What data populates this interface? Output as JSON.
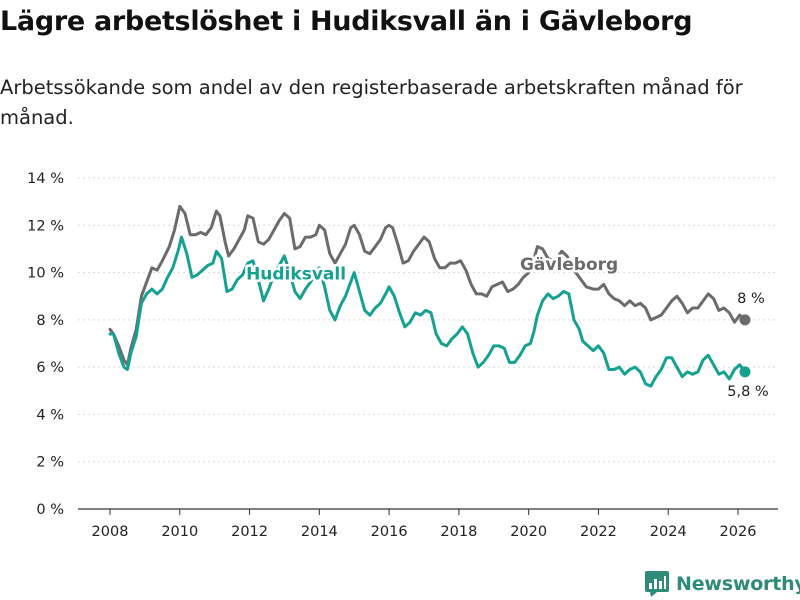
{
  "header": {
    "title": "Lägre arbetslöshet i Hudiksvall än i Gävleborg",
    "subtitle": "Arbetssökande som andel av den registerbaserade arbetskraften månad för månad."
  },
  "branding": {
    "name": "Newsworthy",
    "color": "#2e8b7a"
  },
  "chart_data": {
    "type": "line",
    "title": "Lägre arbetslöshet i Hudiksvall än i Gävleborg",
    "subtitle": "Arbetssökande som andel av den registerbaserade arbetskraften månad för månad.",
    "xlabel": "",
    "ylabel": "",
    "xlim": [
      2007.6,
      2027.2
    ],
    "ylim": [
      0,
      14
    ],
    "x_ticks": [
      2008,
      2010,
      2012,
      2014,
      2016,
      2018,
      2020,
      2022,
      2024,
      2026
    ],
    "x_tick_labels": [
      "2008",
      "2010",
      "2012",
      "2014",
      "2016",
      "2018",
      "2020",
      "2022",
      "2024",
      "2026"
    ],
    "y_ticks": [
      0,
      2,
      4,
      6,
      8,
      10,
      12,
      14
    ],
    "y_tick_labels": [
      "0 %",
      "2 %",
      "4 %",
      "6 %",
      "8 %",
      "10 %",
      "12 %",
      "14 %"
    ],
    "grid": true,
    "series": [
      {
        "name": "Gävleborg",
        "color": "#6b6b6e",
        "end_label": "8 %",
        "points": [
          [
            2008.0,
            7.6
          ],
          [
            2008.1,
            7.4
          ],
          [
            2008.25,
            6.9
          ],
          [
            2008.4,
            6.3
          ],
          [
            2008.5,
            6.1
          ],
          [
            2008.6,
            6.8
          ],
          [
            2008.75,
            7.6
          ],
          [
            2008.9,
            9.0
          ],
          [
            2009.1,
            9.8
          ],
          [
            2009.2,
            10.2
          ],
          [
            2009.35,
            10.1
          ],
          [
            2009.5,
            10.5
          ],
          [
            2009.7,
            11.1
          ],
          [
            2009.85,
            11.8
          ],
          [
            2010.0,
            12.8
          ],
          [
            2010.15,
            12.5
          ],
          [
            2010.3,
            11.6
          ],
          [
            2010.45,
            11.6
          ],
          [
            2010.6,
            11.7
          ],
          [
            2010.75,
            11.6
          ],
          [
            2010.9,
            11.9
          ],
          [
            2011.05,
            12.6
          ],
          [
            2011.15,
            12.4
          ],
          [
            2011.3,
            11.3
          ],
          [
            2011.4,
            10.7
          ],
          [
            2011.55,
            11.0
          ],
          [
            2011.7,
            11.4
          ],
          [
            2011.85,
            11.8
          ],
          [
            2011.95,
            12.4
          ],
          [
            2012.1,
            12.3
          ],
          [
            2012.25,
            11.3
          ],
          [
            2012.4,
            11.2
          ],
          [
            2012.55,
            11.4
          ],
          [
            2012.7,
            11.8
          ],
          [
            2012.85,
            12.2
          ],
          [
            2013.0,
            12.5
          ],
          [
            2013.15,
            12.3
          ],
          [
            2013.3,
            11.0
          ],
          [
            2013.45,
            11.1
          ],
          [
            2013.6,
            11.5
          ],
          [
            2013.75,
            11.5
          ],
          [
            2013.9,
            11.6
          ],
          [
            2014.0,
            12.0
          ],
          [
            2014.15,
            11.8
          ],
          [
            2014.3,
            10.8
          ],
          [
            2014.45,
            10.4
          ],
          [
            2014.6,
            10.8
          ],
          [
            2014.75,
            11.2
          ],
          [
            2014.9,
            11.9
          ],
          [
            2015.0,
            12.0
          ],
          [
            2015.15,
            11.6
          ],
          [
            2015.3,
            10.9
          ],
          [
            2015.45,
            10.8
          ],
          [
            2015.6,
            11.1
          ],
          [
            2015.75,
            11.4
          ],
          [
            2015.9,
            11.9
          ],
          [
            2016.0,
            12.0
          ],
          [
            2016.1,
            11.9
          ],
          [
            2016.25,
            11.2
          ],
          [
            2016.4,
            10.4
          ],
          [
            2016.55,
            10.5
          ],
          [
            2016.7,
            10.9
          ],
          [
            2016.85,
            11.2
          ],
          [
            2017.0,
            11.5
          ],
          [
            2017.15,
            11.3
          ],
          [
            2017.3,
            10.6
          ],
          [
            2017.45,
            10.2
          ],
          [
            2017.6,
            10.2
          ],
          [
            2017.75,
            10.4
          ],
          [
            2017.9,
            10.4
          ],
          [
            2018.05,
            10.5
          ],
          [
            2018.2,
            10.1
          ],
          [
            2018.35,
            9.5
          ],
          [
            2018.5,
            9.1
          ],
          [
            2018.65,
            9.1
          ],
          [
            2018.8,
            9.0
          ],
          [
            2018.95,
            9.4
          ],
          [
            2019.1,
            9.5
          ],
          [
            2019.25,
            9.6
          ],
          [
            2019.4,
            9.2
          ],
          [
            2019.55,
            9.3
          ],
          [
            2019.7,
            9.5
          ],
          [
            2019.85,
            9.8
          ],
          [
            2020.0,
            10.0
          ],
          [
            2020.1,
            10.3
          ],
          [
            2020.25,
            11.1
          ],
          [
            2020.4,
            11.0
          ],
          [
            2020.55,
            10.6
          ],
          [
            2020.75,
            10.5
          ],
          [
            2020.95,
            10.9
          ],
          [
            2021.1,
            10.7
          ],
          [
            2021.25,
            10.2
          ],
          [
            2021.45,
            9.8
          ],
          [
            2021.65,
            9.4
          ],
          [
            2021.85,
            9.3
          ],
          [
            2022.0,
            9.3
          ],
          [
            2022.15,
            9.5
          ],
          [
            2022.3,
            9.1
          ],
          [
            2022.45,
            8.9
          ],
          [
            2022.6,
            8.8
          ],
          [
            2022.75,
            8.6
          ],
          [
            2022.9,
            8.8
          ],
          [
            2023.05,
            8.6
          ],
          [
            2023.2,
            8.7
          ],
          [
            2023.35,
            8.5
          ],
          [
            2023.5,
            8.0
          ],
          [
            2023.65,
            8.1
          ],
          [
            2023.8,
            8.2
          ],
          [
            2023.95,
            8.5
          ],
          [
            2024.1,
            8.8
          ],
          [
            2024.25,
            9.0
          ],
          [
            2024.4,
            8.7
          ],
          [
            2024.55,
            8.3
          ],
          [
            2024.7,
            8.5
          ],
          [
            2024.85,
            8.5
          ],
          [
            2025.0,
            8.8
          ],
          [
            2025.15,
            9.1
          ],
          [
            2025.3,
            8.9
          ],
          [
            2025.45,
            8.4
          ],
          [
            2025.6,
            8.5
          ],
          [
            2025.75,
            8.3
          ],
          [
            2025.9,
            7.9
          ],
          [
            2026.05,
            8.2
          ],
          [
            2026.2,
            8.0
          ]
        ]
      },
      {
        "name": "Hudiksvall",
        "color": "#15a191",
        "end_label": "5,8 %",
        "points": [
          [
            2008.0,
            7.4
          ],
          [
            2008.1,
            7.4
          ],
          [
            2008.25,
            6.6
          ],
          [
            2008.4,
            6.0
          ],
          [
            2008.5,
            5.9
          ],
          [
            2008.6,
            6.6
          ],
          [
            2008.75,
            7.3
          ],
          [
            2008.9,
            8.7
          ],
          [
            2009.05,
            9.1
          ],
          [
            2009.2,
            9.3
          ],
          [
            2009.35,
            9.1
          ],
          [
            2009.5,
            9.3
          ],
          [
            2009.65,
            9.8
          ],
          [
            2009.8,
            10.2
          ],
          [
            2009.95,
            10.9
          ],
          [
            2010.05,
            11.5
          ],
          [
            2010.2,
            10.8
          ],
          [
            2010.35,
            9.8
          ],
          [
            2010.5,
            9.9
          ],
          [
            2010.65,
            10.1
          ],
          [
            2010.8,
            10.3
          ],
          [
            2010.95,
            10.4
          ],
          [
            2011.05,
            10.9
          ],
          [
            2011.2,
            10.6
          ],
          [
            2011.35,
            9.2
          ],
          [
            2011.5,
            9.3
          ],
          [
            2011.65,
            9.7
          ],
          [
            2011.8,
            9.9
          ],
          [
            2011.95,
            10.4
          ],
          [
            2012.1,
            10.5
          ],
          [
            2012.25,
            9.7
          ],
          [
            2012.4,
            8.8
          ],
          [
            2012.55,
            9.3
          ],
          [
            2012.7,
            9.9
          ],
          [
            2012.85,
            10.3
          ],
          [
            2013.0,
            10.7
          ],
          [
            2013.15,
            10.0
          ],
          [
            2013.3,
            9.2
          ],
          [
            2013.45,
            8.9
          ],
          [
            2013.6,
            9.3
          ],
          [
            2013.75,
            9.6
          ],
          [
            2013.9,
            10.0
          ],
          [
            2014.0,
            10.2
          ],
          [
            2014.15,
            9.4
          ],
          [
            2014.3,
            8.4
          ],
          [
            2014.45,
            8.0
          ],
          [
            2014.6,
            8.6
          ],
          [
            2014.75,
            9.0
          ],
          [
            2014.9,
            9.6
          ],
          [
            2015.0,
            10.0
          ],
          [
            2015.15,
            9.2
          ],
          [
            2015.3,
            8.4
          ],
          [
            2015.45,
            8.2
          ],
          [
            2015.6,
            8.5
          ],
          [
            2015.75,
            8.7
          ],
          [
            2015.9,
            9.1
          ],
          [
            2016.0,
            9.4
          ],
          [
            2016.15,
            9.0
          ],
          [
            2016.3,
            8.3
          ],
          [
            2016.45,
            7.7
          ],
          [
            2016.6,
            7.9
          ],
          [
            2016.75,
            8.3
          ],
          [
            2016.9,
            8.2
          ],
          [
            2017.05,
            8.4
          ],
          [
            2017.2,
            8.3
          ],
          [
            2017.35,
            7.4
          ],
          [
            2017.5,
            7.0
          ],
          [
            2017.65,
            6.9
          ],
          [
            2017.8,
            7.2
          ],
          [
            2017.95,
            7.4
          ],
          [
            2018.1,
            7.7
          ],
          [
            2018.25,
            7.4
          ],
          [
            2018.4,
            6.6
          ],
          [
            2018.55,
            6.0
          ],
          [
            2018.7,
            6.2
          ],
          [
            2018.85,
            6.5
          ],
          [
            2019.0,
            6.9
          ],
          [
            2019.15,
            6.9
          ],
          [
            2019.3,
            6.8
          ],
          [
            2019.45,
            6.2
          ],
          [
            2019.6,
            6.2
          ],
          [
            2019.75,
            6.5
          ],
          [
            2019.9,
            6.9
          ],
          [
            2020.05,
            7.0
          ],
          [
            2020.15,
            7.5
          ],
          [
            2020.25,
            8.2
          ],
          [
            2020.4,
            8.8
          ],
          [
            2020.55,
            9.1
          ],
          [
            2020.7,
            8.9
          ],
          [
            2020.85,
            9.0
          ],
          [
            2021.0,
            9.2
          ],
          [
            2021.15,
            9.1
          ],
          [
            2021.3,
            8.0
          ],
          [
            2021.45,
            7.6
          ],
          [
            2021.55,
            7.1
          ],
          [
            2021.7,
            6.9
          ],
          [
            2021.85,
            6.7
          ],
          [
            2022.0,
            6.9
          ],
          [
            2022.15,
            6.6
          ],
          [
            2022.3,
            5.9
          ],
          [
            2022.45,
            5.9
          ],
          [
            2022.6,
            6.0
          ],
          [
            2022.75,
            5.7
          ],
          [
            2022.9,
            5.9
          ],
          [
            2023.05,
            6.0
          ],
          [
            2023.2,
            5.8
          ],
          [
            2023.35,
            5.3
          ],
          [
            2023.5,
            5.2
          ],
          [
            2023.65,
            5.6
          ],
          [
            2023.8,
            5.9
          ],
          [
            2023.95,
            6.4
          ],
          [
            2024.1,
            6.4
          ],
          [
            2024.25,
            6.0
          ],
          [
            2024.4,
            5.6
          ],
          [
            2024.55,
            5.8
          ],
          [
            2024.7,
            5.7
          ],
          [
            2024.85,
            5.8
          ],
          [
            2025.0,
            6.3
          ],
          [
            2025.15,
            6.5
          ],
          [
            2025.3,
            6.1
          ],
          [
            2025.45,
            5.7
          ],
          [
            2025.6,
            5.8
          ],
          [
            2025.75,
            5.5
          ],
          [
            2025.9,
            5.9
          ],
          [
            2026.05,
            6.1
          ],
          [
            2026.2,
            5.8
          ]
        ]
      }
    ],
    "annotations": [
      {
        "text": "Hudiksvall",
        "series": "Hudiksvall",
        "anchor": "2011.9,9.7"
      },
      {
        "text": "Gävleborg",
        "series": "Gävleborg",
        "anchor": "2019.75,10.1"
      }
    ]
  }
}
